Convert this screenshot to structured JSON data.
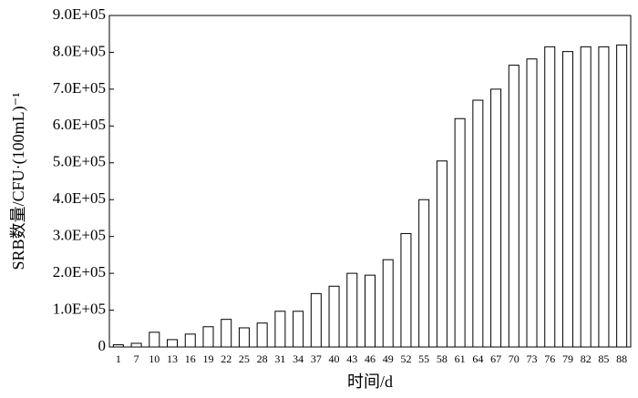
{
  "chart_data": {
    "type": "bar",
    "x_label": "时间/d",
    "y_label": "SRB数量/CFU·(100mL)⁻¹",
    "categories": [
      "1",
      "7",
      "10",
      "13",
      "16",
      "19",
      "22",
      "25",
      "28",
      "31",
      "34",
      "37",
      "40",
      "43",
      "46",
      "49",
      "52",
      "55",
      "58",
      "61",
      "64",
      "67",
      "70",
      "73",
      "76",
      "79",
      "82",
      "85",
      "88"
    ],
    "values": [
      6000,
      10000,
      40000,
      20000,
      35000,
      55000,
      75000,
      52000,
      65000,
      97000,
      97000,
      145000,
      165000,
      200000,
      195000,
      237000,
      308000,
      400000,
      505000,
      620000,
      670000,
      700000,
      765000,
      782000,
      815000,
      802000,
      815000,
      815000,
      820000
    ],
    "color": "#ffffff",
    "ylim": [
      0,
      900000
    ],
    "yticks": [
      0,
      {
        "value": 100000,
        "label": "1.0E+05"
      },
      {
        "value": 200000,
        "label": "2.0E+05"
      },
      {
        "value": 300000,
        "label": "3.0E+05"
      },
      {
        "value": 400000,
        "label": "4.0E+05"
      },
      {
        "value": 500000,
        "label": "5.0E+05"
      },
      {
        "value": 600000,
        "label": "6.0E+05"
      },
      {
        "value": 700000,
        "label": "7.0E+05"
      },
      {
        "value": 800000,
        "label": "8.0E+05"
      },
      {
        "value": 900000,
        "label": "9.0E+05"
      }
    ],
    "grid": false
  }
}
